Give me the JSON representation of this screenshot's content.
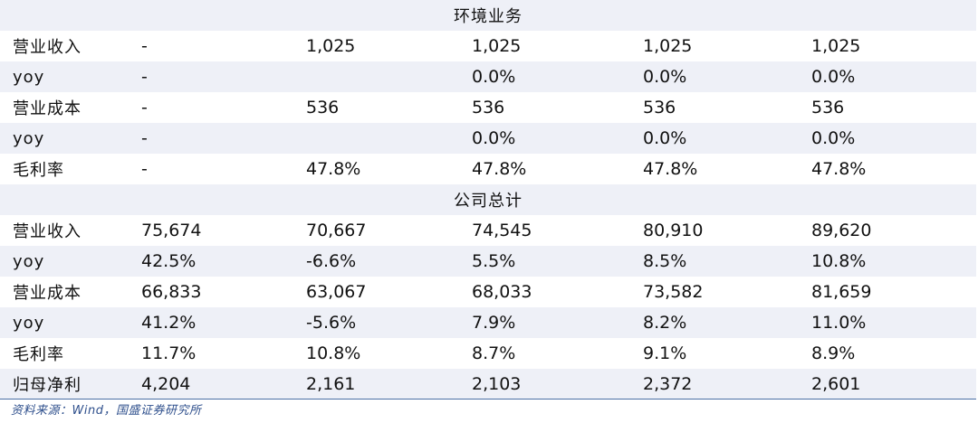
{
  "sections": [
    {
      "title": "环境业务",
      "rows": [
        {
          "label": "营业收入",
          "values": [
            "-",
            "1,025",
            "1,025",
            "1,025",
            "1,025"
          ]
        },
        {
          "label": "yoy",
          "values": [
            "-",
            "",
            "0.0%",
            "0.0%",
            "0.0%"
          ]
        },
        {
          "label": "营业成本",
          "values": [
            "-",
            "536",
            "536",
            "536",
            "536"
          ]
        },
        {
          "label": "yoy",
          "values": [
            "-",
            "",
            "0.0%",
            "0.0%",
            "0.0%"
          ]
        },
        {
          "label": "毛利率",
          "values": [
            "-",
            "47.8%",
            "47.8%",
            "47.8%",
            "47.8%"
          ]
        }
      ]
    },
    {
      "title": "公司总计",
      "rows": [
        {
          "label": "营业收入",
          "values": [
            "75,674",
            "70,667",
            "74,545",
            "80,910",
            "89,620"
          ]
        },
        {
          "label": "yoy",
          "values": [
            "42.5%",
            "-6.6%",
            "5.5%",
            "8.5%",
            "10.8%"
          ]
        },
        {
          "label": "营业成本",
          "values": [
            "66,833",
            "63,067",
            "68,033",
            "73,582",
            "81,659"
          ]
        },
        {
          "label": "yoy",
          "values": [
            "41.2%",
            "-5.6%",
            "7.9%",
            "8.2%",
            "11.0%"
          ]
        },
        {
          "label": "毛利率",
          "values": [
            "11.7%",
            "10.8%",
            "8.7%",
            "9.1%",
            "8.9%"
          ]
        },
        {
          "label": "归母净利",
          "values": [
            "4,204",
            "2,161",
            "2,103",
            "2,372",
            "2,601"
          ]
        }
      ]
    }
  ],
  "source_note": "资料来源：Wind，国盛证券研究所",
  "colors": {
    "row_shade": "#eef0f7",
    "source_text": "#2e4f8c",
    "rule": "#4a6fa5"
  }
}
